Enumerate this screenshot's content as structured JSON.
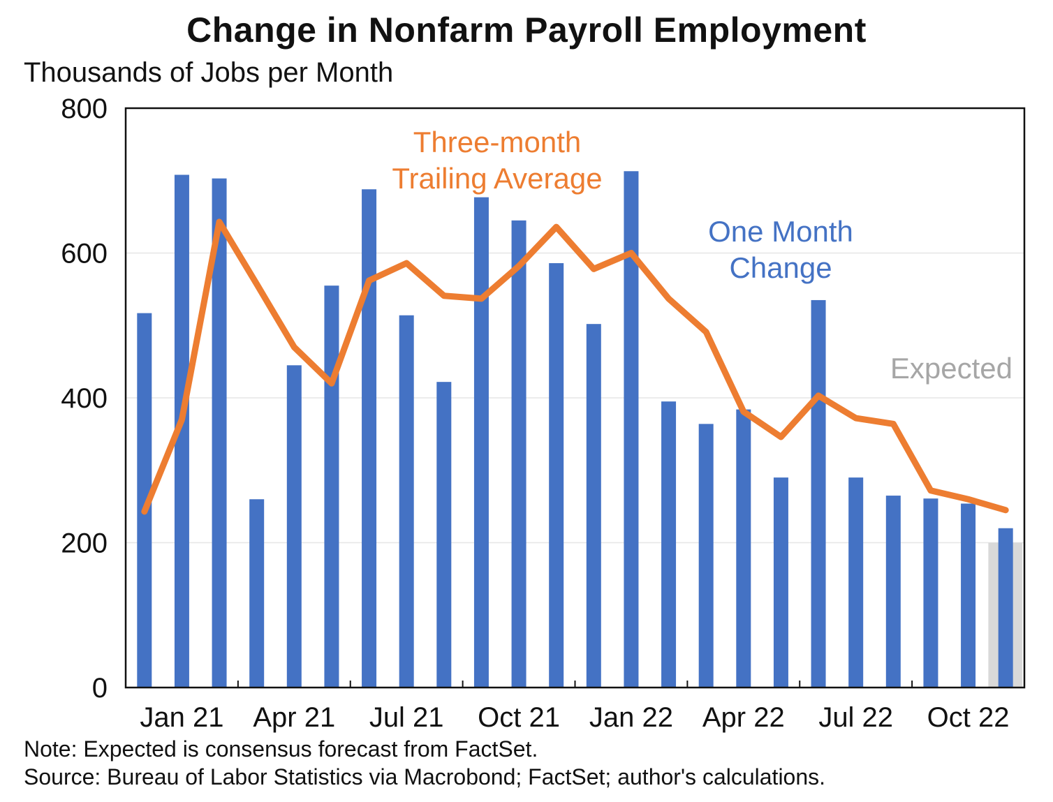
{
  "title": "Change in Nonfarm Payroll Employment",
  "subtitle": "Thousands of Jobs per Month",
  "note": "Note: Expected is consensus forecast from FactSet.",
  "source": "Source: Bureau of Labor Statistics via Macrobond; FactSet; author's calculations.",
  "colors": {
    "bars": "#4472C4",
    "line": "#ED7D31",
    "expected_band": "#D9D9D9",
    "expected_text": "#A6A6A6"
  },
  "chart_data": {
    "type": "bar",
    "ylim": [
      0,
      800
    ],
    "yticks": [
      0,
      200,
      400,
      600,
      800
    ],
    "x_tick_labels": [
      "Jan 21",
      "Apr 21",
      "Jul 21",
      "Oct 21",
      "Jan 22",
      "Apr 22",
      "Jul 22",
      "Oct 22"
    ],
    "x_tick_label_indices": [
      0,
      3,
      6,
      9,
      12,
      15,
      18,
      21
    ],
    "categories": [
      "Jan 21",
      "Feb 21",
      "Mar 21",
      "Apr 21",
      "May 21",
      "Jun 21",
      "Jul 21",
      "Aug 21",
      "Sep 21",
      "Oct 21",
      "Nov 21",
      "Dec 21",
      "Jan 22",
      "Feb 22",
      "Mar 22",
      "Apr 22",
      "May 22",
      "Jun 22",
      "Jul 22",
      "Aug 22",
      "Sep 22",
      "Oct 22",
      "Nov 22",
      "Dec 22"
    ],
    "series": [
      {
        "name": "One Month Change",
        "type": "bar",
        "values": [
          517,
          708,
          703,
          260,
          445,
          555,
          688,
          514,
          422,
          677,
          645,
          586,
          502,
          713,
          395,
          364,
          384,
          290,
          535,
          290,
          265,
          261,
          254,
          220
        ]
      },
      {
        "name": "Three-month Trailing Average",
        "type": "line",
        "values": [
          243,
          370,
          643,
          557,
          470,
          420,
          562,
          586,
          541,
          537,
          582,
          636,
          578,
          600,
          537,
          491,
          381,
          346,
          403,
          372,
          364,
          272,
          260,
          245
        ]
      }
    ],
    "annotations": {
      "line_label": [
        "Three-month",
        "Trailing Average"
      ],
      "bar_label": [
        "One Month",
        "Change"
      ],
      "expected_label": "Expected"
    },
    "expected_band": {
      "category": "Dec 22",
      "ylim": [
        0,
        200
      ]
    },
    "grid": true
  }
}
